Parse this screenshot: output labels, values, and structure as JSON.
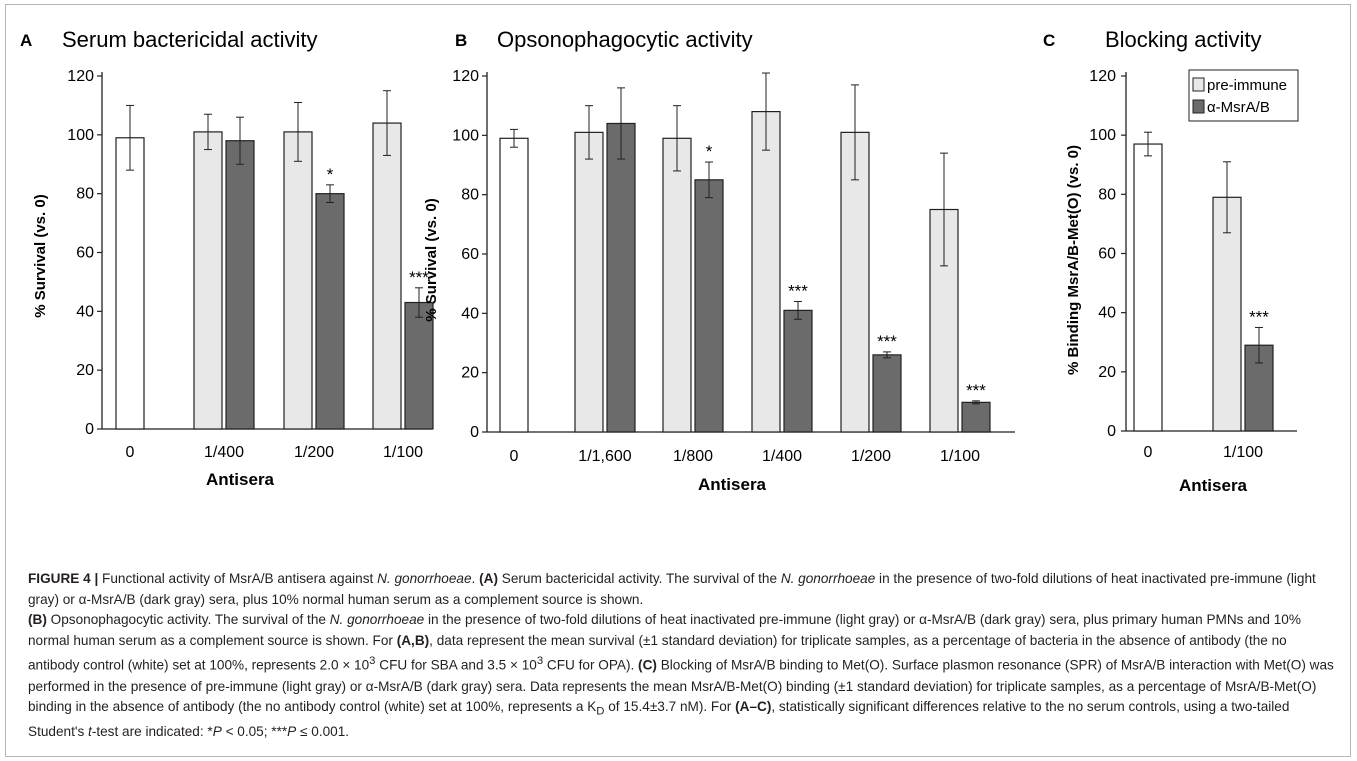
{
  "colors": {
    "pre_immune_fill": "#e8e8e8",
    "control_fill": "#ffffff",
    "msr_fill": "#6b6b6b",
    "axis": "#231f20",
    "border": "#b5b5b5"
  },
  "chart_data": [
    {
      "type": "bar",
      "panel": "A",
      "title": "Serum bactericidal activity",
      "xlabel": "Antisera",
      "ylabel": "% Survival (vs. 0)",
      "ylim": [
        0,
        120
      ],
      "yticks": [
        "0",
        "20",
        "40",
        "60",
        "80",
        "100",
        "120"
      ],
      "categories": [
        "0",
        "1/400",
        "1/200",
        "1/100"
      ],
      "bars": [
        {
          "category": "0",
          "series": "control",
          "value": 99,
          "err": 11,
          "sig": ""
        },
        {
          "category": "1/400",
          "series": "pre-immune",
          "value": 101,
          "err": 6,
          "sig": ""
        },
        {
          "category": "1/400",
          "series": "α-MsrA/B",
          "value": 98,
          "err": 8,
          "sig": ""
        },
        {
          "category": "1/200",
          "series": "pre-immune",
          "value": 101,
          "err": 10,
          "sig": ""
        },
        {
          "category": "1/200",
          "series": "α-MsrA/B",
          "value": 80,
          "err": 3,
          "sig": "*"
        },
        {
          "category": "1/100",
          "series": "pre-immune",
          "value": 104,
          "err": 11,
          "sig": ""
        },
        {
          "category": "1/100",
          "series": "α-MsrA/B",
          "value": 43,
          "err": 5,
          "sig": "***"
        }
      ]
    },
    {
      "type": "bar",
      "panel": "B",
      "title": "Opsonophagocytic activity",
      "xlabel": "Antisera",
      "ylabel": "% Survival (vs. 0)",
      "ylim": [
        0,
        120
      ],
      "yticks": [
        "0",
        "20",
        "40",
        "60",
        "80",
        "100",
        "120"
      ],
      "categories": [
        "0",
        "1/1,600",
        "1/800",
        "1/400",
        "1/200",
        "1/100"
      ],
      "bars": [
        {
          "category": "0",
          "series": "control",
          "value": 99,
          "err": 3,
          "sig": ""
        },
        {
          "category": "1/1,600",
          "series": "pre-immune",
          "value": 101,
          "err": 9,
          "sig": ""
        },
        {
          "category": "1/1,600",
          "series": "α-MsrA/B",
          "value": 104,
          "err": 12,
          "sig": ""
        },
        {
          "category": "1/800",
          "series": "pre-immune",
          "value": 99,
          "err": 11,
          "sig": ""
        },
        {
          "category": "1/800",
          "series": "α-MsrA/B",
          "value": 85,
          "err": 6,
          "sig": "*"
        },
        {
          "category": "1/400",
          "series": "pre-immune",
          "value": 108,
          "err": 13,
          "sig": ""
        },
        {
          "category": "1/400",
          "series": "α-MsrA/B",
          "value": 41,
          "err": 3,
          "sig": "***"
        },
        {
          "category": "1/200",
          "series": "pre-immune",
          "value": 101,
          "err": 16,
          "sig": ""
        },
        {
          "category": "1/200",
          "series": "α-MsrA/B",
          "value": 26,
          "err": 1,
          "sig": "***"
        },
        {
          "category": "1/100",
          "series": "pre-immune",
          "value": 75,
          "err": 19,
          "sig": ""
        },
        {
          "category": "1/100",
          "series": "α-MsrA/B",
          "value": 10,
          "err": 0.5,
          "sig": "***"
        }
      ]
    },
    {
      "type": "bar",
      "panel": "C",
      "title": "Blocking activity",
      "xlabel": "Antisera",
      "ylabel": "% Binding MsrA/B-Met(O) (vs. 0)",
      "ylim": [
        0,
        120
      ],
      "yticks": [
        "0",
        "20",
        "40",
        "60",
        "80",
        "100",
        "120"
      ],
      "categories": [
        "0",
        "1/100"
      ],
      "legend": {
        "position": "top-right",
        "items": [
          "pre-immune",
          "α-MsrA/B"
        ]
      },
      "bars": [
        {
          "category": "0",
          "series": "control",
          "value": 97,
          "err": 4,
          "sig": ""
        },
        {
          "category": "1/100",
          "series": "pre-immune",
          "value": 79,
          "err": 12,
          "sig": ""
        },
        {
          "category": "1/100",
          "series": "α-MsrA/B",
          "value": 29,
          "err": 6,
          "sig": "***"
        }
      ]
    }
  ],
  "caption": {
    "figure_label": "FIGURE 4 |",
    "p1_t1": " Functional activity of MsrA/B antisera against ",
    "p1_org": "N. gonorrhoeae",
    "p1_t2": ". ",
    "p1_A": "(A)",
    "p1_t3": " Serum bactericidal activity. The survival of the ",
    "p1_org2": "N. gonorrhoeae",
    "p1_t4": " in the presence of two-fold dilutions of heat inactivated pre-immune (light gray) or α-MsrA/B (dark gray) sera, plus 10% normal human serum as a complement source is shown.",
    "p2_B": "(B)",
    "p2_t1": " Opsonophagocytic activity. The survival of the ",
    "p2_org": "N. gonorrhoeae",
    "p2_t2": " in the presence of two-fold dilutions of heat inactivated pre-immune (light gray) or α-MsrA/B (dark gray) sera, plus primary human PMNs and 10% normal human serum as a complement source is shown. For ",
    "p2_AB": "(A,B)",
    "p2_t3": ", data represent the mean survival (±1 standard deviation) for triplicate samples, as a percentage of bacteria in the absence of antibody (the no antibody control (white) set at 100%, represents 2.0 × 10",
    "p2_sup1": "3",
    "p2_t4": " CFU for SBA and 3.5 × 10",
    "p2_sup2": "3",
    "p2_t5": " CFU for OPA). ",
    "p2_C": "(C)",
    "p2_t6": " Blocking of MsrA/B binding to Met(O). Surface plasmon resonance (SPR) of MsrA/B interaction with Met(O) was performed in the presence of pre-immune (light gray) or α-MsrA/B (dark gray) sera. Data represents the mean MsrA/B-Met(O) binding (±1 standard deviation) for triplicate samples, as a percentage of MsrA/B-Met(O) binding in the absence of antibody (the no antibody control (white) set at 100%, represents a K",
    "p2_sub": "D",
    "p2_t7": " of 15.4±3.7 nM). For ",
    "p2_AC": "(A–C)",
    "p2_t8": ", statistically significant differences relative to the no serum controls, using a two-tailed Student's ",
    "p2_t": "t",
    "p2_t9": "-test are indicated: *",
    "p2_P1": "P",
    "p2_t10": " < 0.05; ***",
    "p2_P2": "P",
    "p2_t11": " ≤ 0.001."
  }
}
